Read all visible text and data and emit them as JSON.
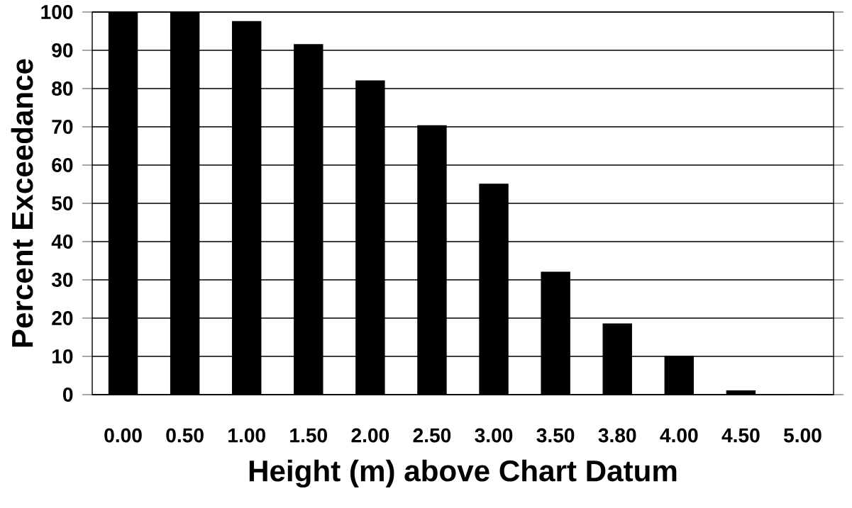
{
  "chart_data": {
    "type": "bar",
    "xlabel": "Height (m) above Chart Datum",
    "ylabel": "Percent Exceedance",
    "categories": [
      "0.00",
      "0.50",
      "1.00",
      "1.50",
      "2.00",
      "2.50",
      "3.00",
      "3.50",
      "3.80",
      "4.00",
      "4.50",
      "5.00"
    ],
    "values": [
      100,
      100,
      97.5,
      91.5,
      82,
      70.3,
      55,
      32,
      18.5,
      10,
      1,
      0
    ],
    "color": "#000000",
    "ylim": [
      0,
      100
    ],
    "yticks": [
      0,
      10,
      20,
      30,
      40,
      50,
      60,
      70,
      80,
      90,
      100
    ],
    "grid": "y"
  }
}
